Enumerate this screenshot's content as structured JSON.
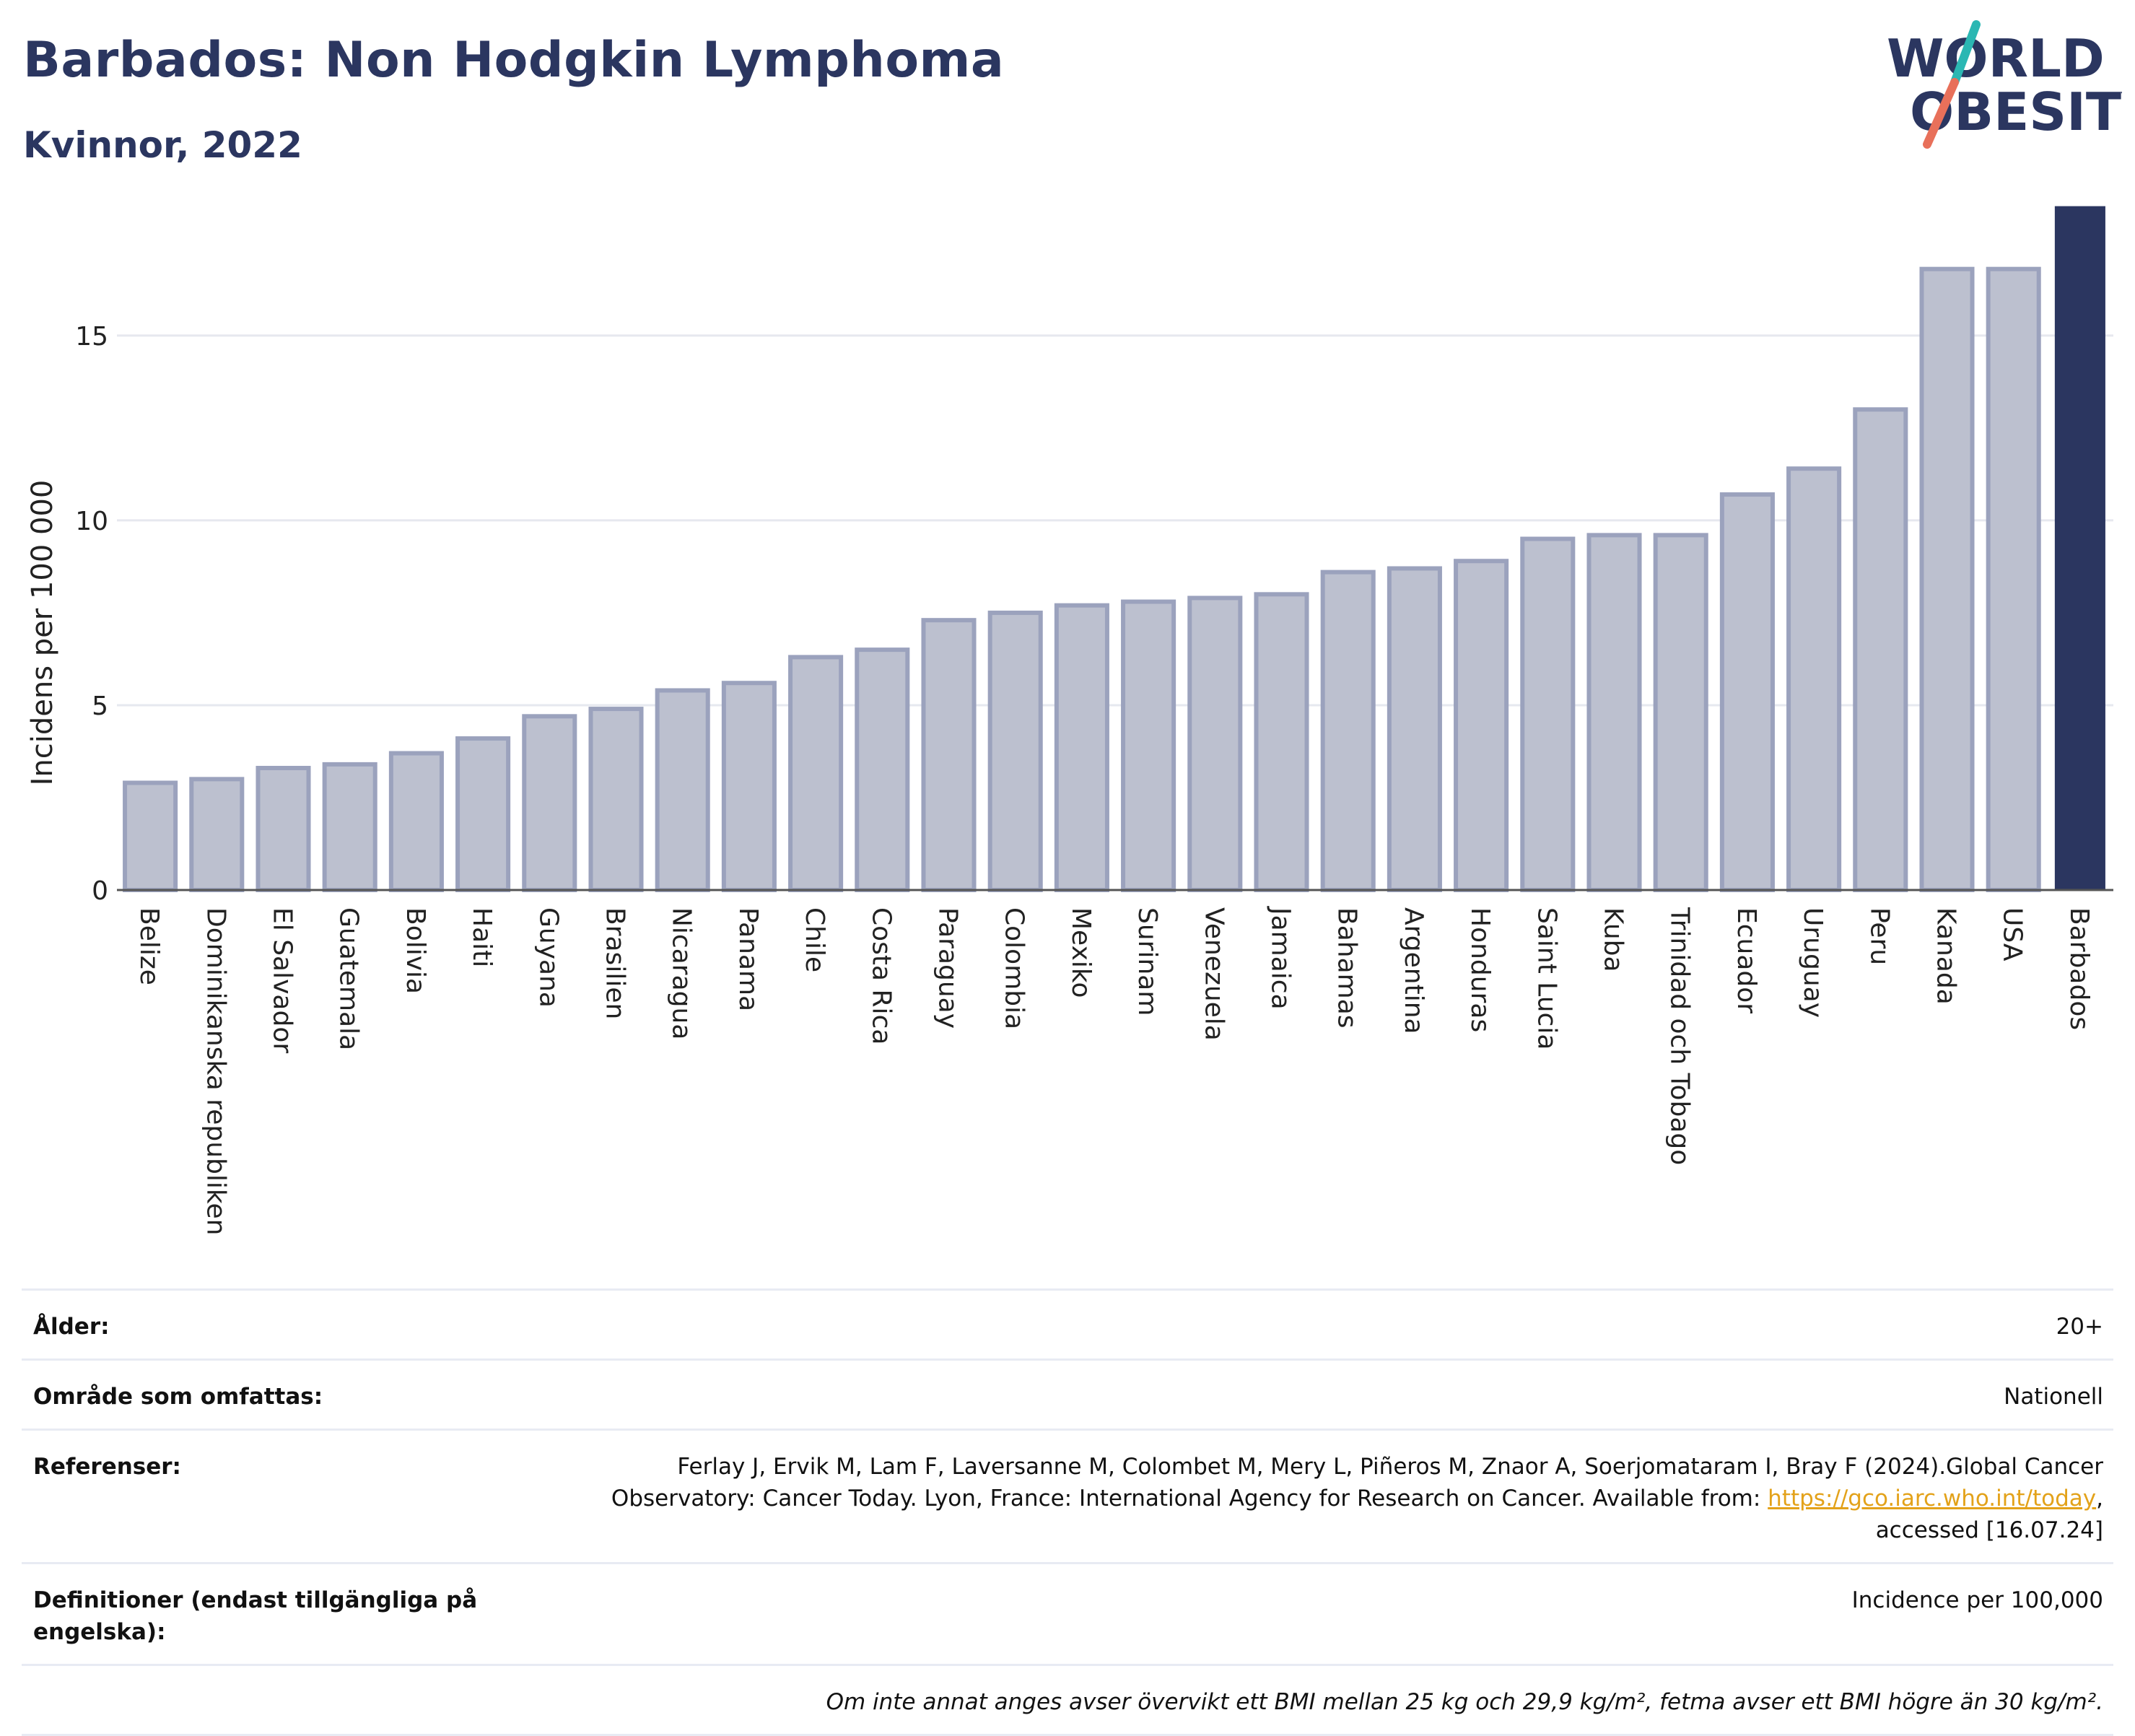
{
  "header": {
    "title": "Barbados: Non Hodgkin Lymphoma",
    "subtitle": "Kvinnor, 2022"
  },
  "logo": {
    "line1": "WORLD",
    "line2": "OBESITY"
  },
  "colors": {
    "bar": "#bcc0cf",
    "bar_border": "#9ba2bd",
    "highlight": "#2b3660",
    "grid": "#e6e8ef",
    "text_dark": "#2b3660",
    "link": "#e3a21a"
  },
  "chart_data": {
    "type": "bar",
    "ylabel": "Incidens per 100 000",
    "ylim": [
      0,
      19
    ],
    "yticks": [
      0,
      5,
      10,
      15
    ],
    "grid": true,
    "highlight_category": "Barbados",
    "categories": [
      "Belize",
      "Dominikanska republiken",
      "El Salvador",
      "Guatemala",
      "Bolivia",
      "Haiti",
      "Guyana",
      "Brasilien",
      "Nicaragua",
      "Panama",
      "Chile",
      "Costa Rica",
      "Paraguay",
      "Colombia",
      "Mexiko",
      "Surinam",
      "Venezuela",
      "Jamaica",
      "Bahamas",
      "Argentina",
      "Honduras",
      "Saint Lucia",
      "Kuba",
      "Trinidad och Tobago",
      "Ecuador",
      "Uruguay",
      "Peru",
      "Kanada",
      "USA",
      "Barbados"
    ],
    "values": [
      2.9,
      3.0,
      3.3,
      3.4,
      3.7,
      4.1,
      4.7,
      4.9,
      5.4,
      5.6,
      6.3,
      6.5,
      7.3,
      7.5,
      7.7,
      7.8,
      7.9,
      8.0,
      8.6,
      8.7,
      8.9,
      9.5,
      9.6,
      9.6,
      10.7,
      11.4,
      13.0,
      16.8,
      16.8,
      18.5
    ]
  },
  "meta": {
    "age_label": "Ålder:",
    "age_value": "20+",
    "area_label": "Område som omfattas:",
    "area_value": "Nationell",
    "ref_label": "Referenser:",
    "ref_text_1": "Ferlay J, Ervik M, Lam F, Laversanne M, Colombet M, Mery L, Piñeros M, Znaor A, Soerjomataram I, Bray F (2024).Global Cancer Observatory: Cancer Today. Lyon, France: International Agency for Research on Cancer. Available from: ",
    "ref_link": "https://gco.iarc.who.int/today",
    "ref_text_2": ", accessed [16.07.24]",
    "def_label": "Definitioner (endast tillgängliga på engelska):",
    "def_value": "Incidence per 100,000",
    "note": "Om inte annat anges avser övervikt ett BMI mellan 25 kg och 29,9 kg/m², fetma avser ett BMI högre än 30 kg/m²."
  }
}
